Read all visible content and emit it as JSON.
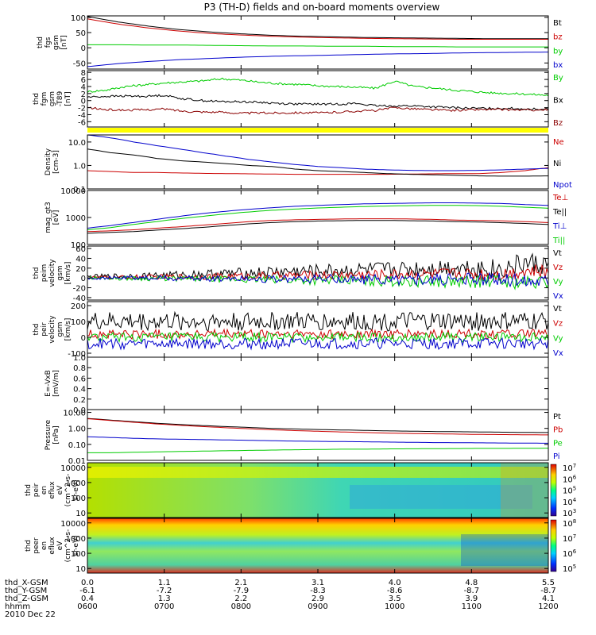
{
  "title": "P3 (TH-D) fields and on-board moments overview",
  "chart_data": {
    "type": "line",
    "title": "P3 (TH-D) fields and on-board moments overview",
    "time_axis": {
      "ticks": [
        "0600",
        "0700",
        "0800",
        "0900",
        "1000",
        "1100",
        "1200"
      ],
      "label": "hhmm",
      "date": "2010 Dec 22"
    },
    "ephemeris": [
      {
        "label": "thd_X-GSM",
        "values": [
          "0.0",
          "1.1",
          "2.1",
          "3.1",
          "4.0",
          "4.8",
          "5.5"
        ]
      },
      {
        "label": "thd_Y-GSM",
        "values": [
          "-6.1",
          "-7.2",
          "-7.9",
          "-8.3",
          "-8.6",
          "-8.7",
          "-8.7"
        ]
      },
      {
        "label": "thd_Z-GSM",
        "values": [
          "0.4",
          "1.3",
          "2.2",
          "2.9",
          "3.5",
          "3.9",
          "4.1"
        ]
      }
    ],
    "panels": [
      {
        "id": "fgs",
        "ylabel": [
          "thd",
          "fgs",
          "gsm",
          "[nT]"
        ],
        "scale": "linear",
        "ylim": [
          -70,
          105
        ],
        "yticks": [
          "100",
          "50",
          "0",
          "-50"
        ],
        "yticks_val": [
          100,
          50,
          0,
          -50
        ],
        "series": [
          {
            "name": "Bt",
            "color": "#000000",
            "values": [
              103,
              85,
              71,
              60,
              52,
              46,
              41,
              38,
              36,
              34,
              33,
              32,
              31,
              30,
              30,
              30
            ]
          },
          {
            "name": "bz",
            "color": "#cc0000",
            "values": [
              95,
              78,
              65,
              55,
              47,
              42,
              38,
              35,
              33,
              31,
              30,
              29,
              28,
              28,
              28,
              28
            ]
          },
          {
            "name": "by",
            "color": "#00cc00",
            "values": [
              10,
              10,
              9,
              9,
              8,
              7,
              6,
              6,
              5,
              5,
              4,
              4,
              3,
              3,
              3,
              3
            ]
          },
          {
            "name": "bx",
            "color": "#0000cc",
            "values": [
              -62,
              -52,
              -45,
              -39,
              -35,
              -31,
              -28,
              -26,
              -24,
              -22,
              -20,
              -19,
              -17,
              -16,
              -15,
              -14
            ]
          }
        ]
      },
      {
        "id": "fgm",
        "ylabel": [
          "thd",
          "fgm",
          "gsm",
          "-T89",
          "[nT]"
        ],
        "scale": "linear",
        "ylim": [
          -7.5,
          8.5
        ],
        "yticks": [
          "8",
          "6",
          "4",
          "2",
          "0",
          "-2",
          "-4",
          "-6"
        ],
        "yticks_val": [
          8,
          6,
          4,
          2,
          0,
          -2,
          -4,
          -6
        ],
        "series": [
          {
            "name": "By",
            "color": "#00cc00",
            "values": [
              2.5,
              3,
              4,
              4.5,
              5,
              5.3,
              5.6,
              6.2,
              5.8,
              5.2,
              4.8,
              4.6,
              4.2,
              4,
              3.8,
              3.5,
              5.5,
              4,
              3.6,
              3,
              2.6,
              2.2,
              2,
              1.8,
              1.5
            ]
          },
          {
            "name": "Bx",
            "color": "#000000",
            "values": [
              1,
              1.2,
              1.3,
              1.2,
              1.5,
              0.5,
              0,
              -0.3,
              -0.3,
              -0.5,
              -0.8,
              -1,
              -1,
              -1,
              -0.8,
              -1.5,
              -1.5,
              -1.5,
              -1.8,
              -2,
              -2.2,
              -2.2,
              -2.2,
              -2.4,
              -2.4
            ]
          },
          {
            "name": "Bz",
            "color": "#8b0000",
            "values": [
              -2,
              -2.6,
              -2.7,
              -2.6,
              -2.4,
              -3,
              -3.2,
              -3.3,
              -3.6,
              -3.5,
              -3.5,
              -3.4,
              -3.5,
              -3.3,
              -3,
              -2.8,
              -2,
              -2.3,
              -2.6,
              -2.8,
              -2.6,
              -2.5,
              -2.6,
              -2.7,
              -2.6
            ]
          }
        ],
        "status_bar_color": "#ffff00"
      },
      {
        "id": "density",
        "ylabel": [
          "Density",
          "[cm-3]"
        ],
        "scale": "log",
        "ylim": [
          0.1,
          20
        ],
        "yticks": [
          "10.0",
          "1.0",
          "0.1"
        ],
        "yticks_val": [
          10,
          1,
          0.1
        ],
        "series": [
          {
            "name": "Ne",
            "color": "#cc0000",
            "values": [
              0.6,
              0.55,
              0.5,
              0.5,
              0.48,
              0.46,
              0.45,
              0.44,
              0.43,
              0.42,
              0.42,
              0.42,
              0.42,
              0.42,
              0.43,
              0.44,
              0.45,
              0.45,
              0.5,
              0.6,
              0.8
            ]
          },
          {
            "name": "Ni",
            "color": "#000000",
            "values": [
              5,
              3.5,
              2.8,
              2,
              1.6,
              1.4,
              1.2,
              1,
              0.9,
              0.7,
              0.6,
              0.55,
              0.5,
              0.45,
              0.42,
              0.4,
              0.38,
              0.36,
              0.35,
              0.35,
              0.36
            ]
          },
          {
            "name": "Npot",
            "color": "#0000cc",
            "values": [
              20,
              15,
              10,
              7,
              5,
              3.5,
              2.5,
              1.8,
              1.4,
              1.1,
              0.9,
              0.8,
              0.7,
              0.65,
              0.62,
              0.6,
              0.6,
              0.62,
              0.65,
              0.7,
              0.75
            ]
          }
        ]
      },
      {
        "id": "temperature",
        "ylabel": [
          "mag_gt3",
          "[eV]"
        ],
        "scale": "log",
        "ylim": [
          100,
          10000
        ],
        "yticks": [
          "10000",
          "1000",
          "100"
        ],
        "yticks_val": [
          10000,
          1000,
          100
        ],
        "series": [
          {
            "name": "Te⊥",
            "color": "#cc0000",
            "values": [
              300,
              320,
              350,
              400,
              450,
              520,
              600,
              700,
              780,
              820,
              850,
              880,
              900,
              900,
              880,
              850,
              800,
              780,
              750,
              700,
              650
            ]
          },
          {
            "name": "Te||",
            "color": "#000000",
            "values": [
              260,
              280,
              300,
              340,
              380,
              430,
              500,
              580,
              650,
              700,
              740,
              760,
              780,
              780,
              760,
              740,
              700,
              680,
              640,
              600,
              550
            ]
          },
          {
            "name": "Ti⊥",
            "color": "#0000cc",
            "values": [
              400,
              500,
              650,
              850,
              1100,
              1400,
              1700,
              2000,
              2300,
              2600,
              2800,
              3000,
              3200,
              3300,
              3400,
              3500,
              3500,
              3400,
              3300,
              3000,
              2800
            ]
          },
          {
            "name": "Ti||",
            "color": "#00cc00",
            "values": [
              350,
              420,
              550,
              700,
              900,
              1100,
              1350,
              1600,
              1850,
              2050,
              2250,
              2400,
              2550,
              2650,
              2750,
              2800,
              2800,
              2750,
              2600,
              2400,
              2200
            ]
          }
        ]
      },
      {
        "id": "peim",
        "ylabel": [
          "thd",
          "peim",
          "velocity",
          "gsm",
          "[km/s]"
        ],
        "scale": "linear",
        "ylim": [
          -45,
          65
        ],
        "yticks": [
          "60",
          "40",
          "20",
          "0",
          "-20",
          "-40"
        ],
        "yticks_val": [
          60,
          40,
          20,
          0,
          -20,
          -40
        ],
        "series": [
          {
            "name": "Vt",
            "color": "#000000",
            "values": [
              2,
              3,
              4,
              5,
              6,
              8,
              9,
              10,
              12,
              13,
              14,
              15,
              16,
              17,
              18,
              20,
              22,
              20,
              18,
              30,
              25
            ]
          },
          {
            "name": "Vz",
            "color": "#cc0000",
            "values": [
              1,
              1,
              2,
              2,
              3,
              3,
              4,
              4,
              5,
              5,
              6,
              6,
              7,
              7,
              8,
              8,
              9,
              8,
              8,
              15,
              10
            ]
          },
          {
            "name": "Vy",
            "color": "#00cc00",
            "values": [
              0,
              0,
              -1,
              -1,
              -2,
              -2,
              -3,
              -3,
              -4,
              -4,
              -5,
              -5,
              -6,
              -6,
              -7,
              -7,
              -8,
              -7,
              -6,
              -10,
              -8
            ]
          },
          {
            "name": "Vx",
            "color": "#0000cc",
            "values": [
              0,
              0,
              0,
              0,
              -1,
              -1,
              -1,
              -1,
              -2,
              -2,
              -2,
              -2,
              -3,
              -3,
              -3,
              -3,
              -4,
              -3,
              -3,
              -5,
              -4
            ]
          }
        ]
      },
      {
        "id": "peir",
        "ylabel": [
          "thd",
          "peir",
          "velocity",
          "gsm",
          "[km/s]"
        ],
        "scale": "linear",
        "ylim": [
          -125,
          225
        ],
        "yticks": [
          "200",
          "100",
          "0",
          "-100"
        ],
        "yticks_val": [
          200,
          100,
          0,
          -100
        ],
        "series": [
          {
            "name": "Vt",
            "color": "#000000",
            "values": [
              100,
              100,
              100,
              100,
              100,
              100,
              100,
              100,
              100,
              100,
              100,
              100,
              100,
              100,
              100,
              100,
              100,
              100,
              100,
              100,
              100
            ]
          },
          {
            "name": "Vz",
            "color": "#cc0000",
            "values": [
              20,
              20,
              20,
              20,
              20,
              20,
              20,
              20,
              20,
              20,
              20,
              20,
              20,
              20,
              20,
              20,
              20,
              20,
              20,
              20,
              20
            ]
          },
          {
            "name": "Vy",
            "color": "#00cc00",
            "values": [
              0,
              0,
              0,
              0,
              0,
              0,
              0,
              0,
              0,
              0,
              0,
              0,
              0,
              0,
              0,
              0,
              0,
              0,
              0,
              0,
              0
            ]
          },
          {
            "name": "Vx",
            "color": "#0000cc",
            "values": [
              -40,
              -40,
              -40,
              -40,
              -40,
              -40,
              -40,
              -40,
              -40,
              -40,
              -40,
              -40,
              -40,
              -40,
              -40,
              -40,
              -40,
              -40,
              -40,
              -40,
              -40
            ]
          }
        ]
      },
      {
        "id": "efield",
        "ylabel": [
          "E=-VxB",
          "[mV/m]"
        ],
        "scale": "linear",
        "ylim": [
          0,
          1
        ],
        "yticks": [
          "1.0",
          "0.8",
          "0.6",
          "0.4",
          "0.2",
          "0.0"
        ],
        "yticks_val": [
          1,
          0.8,
          0.6,
          0.4,
          0.2,
          0
        ],
        "series": [
          {
            "name": "Ez",
            "color": "#cc0000",
            "values": []
          },
          {
            "name": "Ey",
            "color": "#00cc00",
            "values": []
          },
          {
            "name": "Ex",
            "color": "#0000cc",
            "values": []
          }
        ]
      },
      {
        "id": "pressure",
        "ylabel": [
          "Pressure",
          "[nPa]"
        ],
        "scale": "log",
        "ylim": [
          0.01,
          15
        ],
        "yticks": [
          "10.00",
          "1.00",
          "0.10",
          "0.01"
        ],
        "yticks_val": [
          10,
          1,
          0.1,
          0.01
        ],
        "series": [
          {
            "name": "Pt",
            "color": "#000000",
            "values": [
              4.2,
              3.3,
              2.6,
              2.1,
              1.75,
              1.5,
              1.3,
              1.15,
              1,
              0.92,
              0.85,
              0.8,
              0.75,
              0.7,
              0.67,
              0.64,
              0.62,
              0.6,
              0.58,
              0.56,
              0.55
            ]
          },
          {
            "name": "Pb",
            "color": "#cc0000",
            "values": [
              4,
              3.1,
              2.4,
              1.9,
              1.55,
              1.3,
              1.1,
              0.95,
              0.82,
              0.73,
              0.66,
              0.6,
              0.55,
              0.51,
              0.48,
              0.46,
              0.44,
              0.42,
              0.41,
              0.4,
              0.39
            ]
          },
          {
            "name": "Pe",
            "color": "#00cc00",
            "values": [
              0.03,
              0.03,
              0.032,
              0.034,
              0.036,
              0.038,
              0.04,
              0.042,
              0.044,
              0.046,
              0.048,
              0.05,
              0.05,
              0.052,
              0.053,
              0.054,
              0.055,
              0.056,
              0.056,
              0.057,
              0.058
            ]
          },
          {
            "name": "Pi",
            "color": "#0000cc",
            "values": [
              0.3,
              0.27,
              0.24,
              0.22,
              0.21,
              0.2,
              0.19,
              0.18,
              0.17,
              0.16,
              0.155,
              0.15,
              0.145,
              0.14,
              0.135,
              0.13,
              0.128,
              0.125,
              0.122,
              0.12,
              0.118
            ]
          }
        ]
      },
      {
        "id": "peir_spec",
        "type": "heatmap",
        "ylabel": [
          "thd",
          "peir",
          "en",
          "eflux",
          "eV",
          "(cm^2-s-",
          "sr-eV)"
        ],
        "scale": "log",
        "ylim": [
          5,
          20000
        ],
        "yticks": [
          "10000",
          "1000",
          "100",
          "10"
        ],
        "yticks_val": [
          10000,
          1000,
          100,
          10
        ],
        "colorbar": {
          "ticks": [
            "10^7",
            "10^6",
            "10^5",
            "10^4",
            "10^3"
          ],
          "range": [
            3,
            7.5
          ]
        }
      },
      {
        "id": "peer_spec",
        "type": "heatmap",
        "ylabel": [
          "thd",
          "peer",
          "en",
          "eflux",
          "eV",
          "(cm^2-s-",
          "sr-eV)"
        ],
        "scale": "log",
        "ylim": [
          5,
          20000
        ],
        "yticks": [
          "10000",
          "1000",
          "100",
          "10"
        ],
        "yticks_val": [
          10000,
          1000,
          100,
          10
        ],
        "colorbar": {
          "ticks": [
            "10^8",
            "10^7",
            "10^6",
            "10^5"
          ],
          "range": [
            4.5,
            8.2
          ]
        }
      }
    ]
  }
}
